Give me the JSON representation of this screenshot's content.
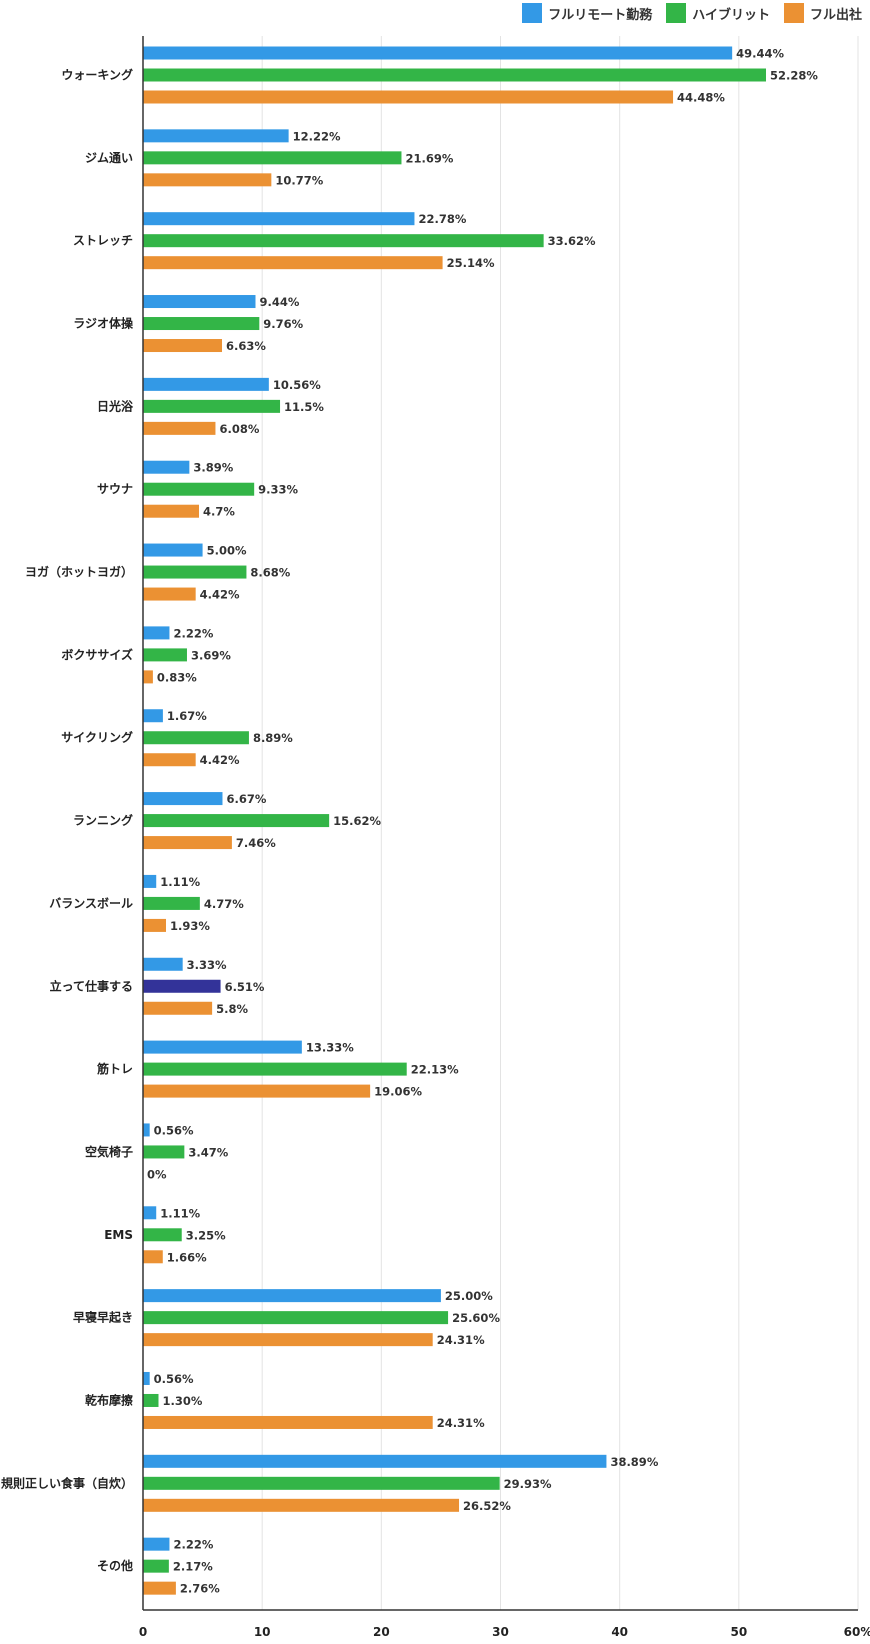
{
  "chart_data": {
    "type": "bar",
    "orientation": "horizontal",
    "categories": [
      "ウォーキング",
      "ジム通い",
      "ストレッチ",
      "ラジオ体操",
      "日光浴",
      "サウナ",
      "ヨガ（ホットヨガ）",
      "ボクササイズ",
      "サイクリング",
      "ランニング",
      "バランスボール",
      "立って仕事する",
      "筋トレ",
      "空気椅子",
      "EMS",
      "早寝早起き",
      "乾布摩擦",
      "規則正しい食事（自炊）",
      "その他"
    ],
    "series": [
      {
        "name": "フルリモート勤務",
        "color": "#3399e6",
        "values": [
          49.44,
          12.22,
          22.78,
          9.44,
          10.56,
          3.89,
          5.0,
          2.22,
          1.67,
          6.67,
          1.11,
          3.33,
          13.33,
          0.56,
          1.11,
          25.0,
          0.56,
          38.89,
          2.22
        ],
        "labels": [
          "49.44%",
          "12.22%",
          "22.78%",
          "9.44%",
          "10.56%",
          "3.89%",
          "5.00%",
          "2.22%",
          "1.67%",
          "6.67%",
          "1.11%",
          "3.33%",
          "13.33%",
          "0.56%",
          "1.11%",
          "25.00%",
          "0.56%",
          "38.89%",
          "2.22%"
        ]
      },
      {
        "name": "ハイブリット",
        "color": "#33b547",
        "values": [
          52.28,
          21.69,
          33.62,
          9.76,
          11.5,
          9.33,
          8.68,
          3.69,
          8.89,
          15.62,
          4.77,
          6.51,
          22.13,
          3.47,
          3.25,
          25.6,
          1.3,
          29.93,
          2.17
        ],
        "labels": [
          "52.28%",
          "21.69%",
          "33.62%",
          "9.76%",
          "11.5%",
          "9.33%",
          "8.68%",
          "3.69%",
          "8.89%",
          "15.62%",
          "4.77%",
          "6.51%",
          "22.13%",
          "3.47%",
          "3.25%",
          "25.60%",
          "1.30%",
          "29.93%",
          "2.17%"
        ]
      },
      {
        "name": "フル出社",
        "color": "#eb9133",
        "values": [
          44.48,
          10.77,
          25.14,
          6.63,
          6.08,
          4.7,
          4.42,
          0.83,
          4.42,
          7.46,
          1.93,
          5.8,
          19.06,
          0,
          1.66,
          24.31,
          24.31,
          26.52,
          2.76
        ],
        "labels": [
          "44.48%",
          "10.77%",
          "25.14%",
          "6.63%",
          "6.08%",
          "4.7%",
          "4.42%",
          "0.83%",
          "4.42%",
          "7.46%",
          "1.93%",
          "5.8%",
          "19.06%",
          "0%",
          "1.66%",
          "24.31%",
          "24.31%",
          "26.52%",
          "2.76%"
        ]
      }
    ],
    "highlight": {
      "category_index": 11,
      "series_index": 1,
      "color": "#333399"
    },
    "xlim": [
      0,
      60
    ],
    "xticks": [
      0,
      10,
      20,
      30,
      40,
      50,
      60
    ],
    "xtick_labels": [
      "0",
      "10",
      "20",
      "30",
      "40",
      "50",
      "60%"
    ],
    "grid": true,
    "legend_position": "top-right"
  }
}
